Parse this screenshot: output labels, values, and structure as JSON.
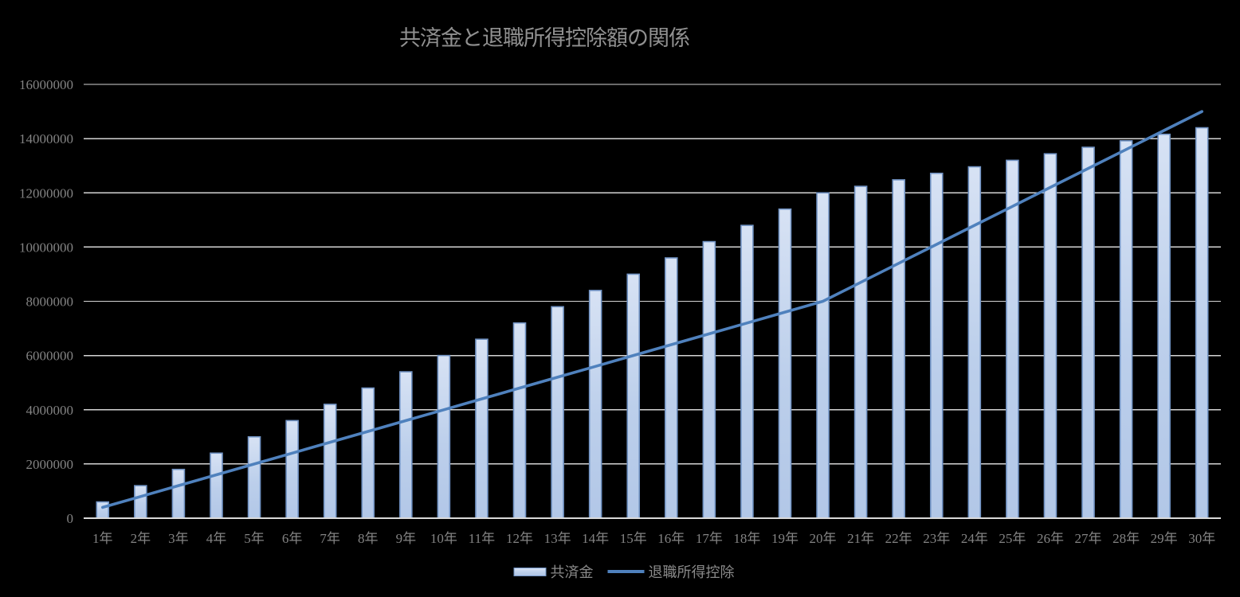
{
  "title": "共済金と退職所得控除額の関係",
  "colors": {
    "background": "#000000",
    "title_text": "#909090",
    "axis_text": "#838383",
    "legend_text": "#8a8a8a",
    "gridline": "#d4d4d4",
    "axis_line": "#d9d9d9",
    "bar_fill_top": "#d7e2f4",
    "bar_fill_bottom": "#b2c7e7",
    "bar_border": "#7193c4",
    "line_series": "#4f81bd"
  },
  "chart_data": {
    "type": "bar",
    "title": "共済金と退職所得控除額の関係",
    "categories": [
      "1年",
      "2年",
      "3年",
      "4年",
      "5年",
      "6年",
      "7年",
      "8年",
      "9年",
      "10年",
      "11年",
      "12年",
      "13年",
      "14年",
      "15年",
      "16年",
      "17年",
      "18年",
      "19年",
      "20年",
      "21年",
      "22年",
      "23年",
      "24年",
      "25年",
      "26年",
      "27年",
      "28年",
      "29年",
      "30年"
    ],
    "series": [
      {
        "name": "共済金",
        "type": "bar",
        "values": [
          600000,
          1200000,
          1800000,
          2400000,
          3000000,
          3600000,
          4200000,
          4800000,
          5400000,
          6000000,
          6600000,
          7200000,
          7800000,
          8400000,
          9000000,
          9600000,
          10200000,
          10800000,
          11400000,
          12000000,
          12240000,
          12480000,
          12720000,
          12960000,
          13200000,
          13440000,
          13680000,
          13920000,
          14160000,
          14400000
        ]
      },
      {
        "name": "退職所得控除",
        "type": "line",
        "values": [
          400000,
          800000,
          1200000,
          1600000,
          2000000,
          2400000,
          2800000,
          3200000,
          3600000,
          4000000,
          4400000,
          4800000,
          5200000,
          5600000,
          6000000,
          6400000,
          6800000,
          7200000,
          7600000,
          8000000,
          8700000,
          9400000,
          10100000,
          10800000,
          11500000,
          12200000,
          12900000,
          13600000,
          14300000,
          15000000
        ]
      }
    ],
    "xlabel": "",
    "ylabel": "",
    "ylim": [
      0,
      16000000
    ],
    "ytick_interval": 2000000,
    "y_tick_labels": [
      "0",
      "2000000",
      "4000000",
      "6000000",
      "8000000",
      "10000000",
      "12000000",
      "14000000",
      "16000000"
    ],
    "grid": true,
    "legend_position": "bottom"
  }
}
